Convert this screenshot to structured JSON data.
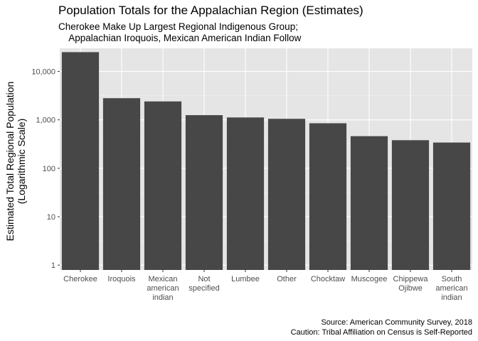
{
  "chart_data": {
    "type": "bar",
    "title": "Population Totals for the Appalachian Region (Estimates)",
    "subtitle": "Cherokee Make Up Largest Regional Indigenous Group;\n    Appalachian Iroquois, Mexican American Indian Follow",
    "ylabel": [
      "Estimated Total Regional Population",
      "(Logarithmic Scale)"
    ],
    "xlabel": "",
    "y_scale": "log10",
    "ylim": [
      1,
      30000
    ],
    "y_ticks": [
      1,
      10,
      100,
      1000,
      10000
    ],
    "y_tick_labels": [
      "1",
      "10",
      "100",
      "1,000",
      "10,000"
    ],
    "grid": true,
    "categories": [
      [
        "Cherokee"
      ],
      [
        "Iroquois"
      ],
      [
        "Mexican",
        "american",
        "indian"
      ],
      [
        "Not",
        "specified"
      ],
      [
        "Lumbee"
      ],
      [
        "Other"
      ],
      [
        "Chocktaw"
      ],
      [
        "Muscogee"
      ],
      [
        "Chippewa",
        "Ojibwe"
      ],
      [
        "South",
        "american",
        "indian"
      ]
    ],
    "values": [
      25000,
      2800,
      2400,
      1250,
      1120,
      1050,
      850,
      460,
      380,
      340
    ],
    "bar_color": "#474747",
    "panel_color": "#e5e5e5",
    "caption": [
      "Source: American Community Survey, 2018",
      "Caution: Tribal Affiliation on Census is Self-Reported"
    ]
  }
}
